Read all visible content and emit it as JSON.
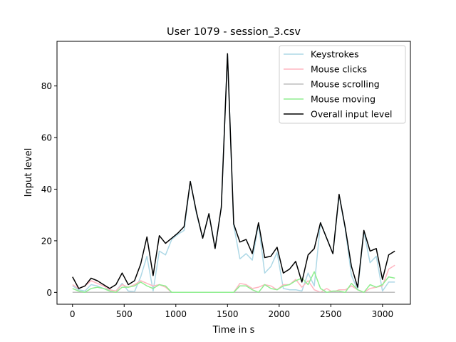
{
  "chart_data": {
    "type": "line",
    "title": "User 1079 - session_3.csv",
    "xlabel": "Time in s",
    "ylabel": "Input level",
    "xlim": [
      -150,
      3270
    ],
    "ylim": [
      -4.6,
      97.3
    ],
    "x_ticks": [
      0,
      500,
      1000,
      1500,
      2000,
      2500,
      3000
    ],
    "y_ticks": [
      0,
      20,
      40,
      60,
      80
    ],
    "x_tick_labels": [
      "0",
      "500",
      "1000",
      "1500",
      "2000",
      "2500",
      "3000"
    ],
    "y_tick_labels": [
      "0",
      "20",
      "40",
      "60",
      "80"
    ],
    "grid": false,
    "legend_position": "top-right",
    "x": [
      0,
      60,
      120,
      180,
      240,
      300,
      360,
      420,
      480,
      540,
      600,
      660,
      720,
      780,
      840,
      900,
      960,
      1020,
      1080,
      1140,
      1200,
      1260,
      1320,
      1380,
      1440,
      1500,
      1560,
      1620,
      1680,
      1740,
      1800,
      1860,
      1920,
      1980,
      2040,
      2100,
      2160,
      2220,
      2280,
      2340,
      2400,
      2460,
      2520,
      2580,
      2640,
      2700,
      2760,
      2820,
      2880,
      2940,
      3000,
      3060,
      3120
    ],
    "series": [
      {
        "name": "Keystrokes",
        "color": "#add8e6",
        "values": [
          2.5,
          1,
          0.5,
          3,
          2.5,
          1.5,
          1,
          0.5,
          3.5,
          0.5,
          0.3,
          6,
          14,
          0.5,
          16,
          14.5,
          20.5,
          22.5,
          24,
          43,
          30.5,
          21,
          30.5,
          17,
          33,
          92.5,
          26,
          13,
          15,
          12.5,
          26.5,
          7.5,
          10,
          15.5,
          1.5,
          1,
          1,
          0.5,
          7.5,
          2.5,
          27,
          21,
          15,
          37.5,
          24.5,
          6.5,
          1,
          23.5,
          11.5,
          14,
          0.5,
          4,
          4
        ]
      },
      {
        "name": "Mouse clicks",
        "color": "#ffb6c1",
        "values": [
          3,
          1.5,
          2.5,
          4.5,
          3.5,
          2.5,
          1,
          0.5,
          3,
          2,
          3,
          4.5,
          3.5,
          2.5,
          3,
          2,
          0,
          0,
          0,
          0,
          0,
          0,
          0,
          0,
          0,
          0,
          0,
          3.5,
          3,
          1.5,
          2,
          3,
          2.5,
          1,
          3,
          3,
          5,
          2,
          4.5,
          1,
          0,
          1.5,
          0,
          1,
          1,
          2.5,
          1,
          0,
          1.5,
          2,
          2.5,
          9,
          10.5
        ]
      },
      {
        "name": "Mouse scrolling",
        "color": "#bebebe",
        "values": [
          0,
          0,
          0,
          0,
          0,
          0,
          0,
          0,
          0,
          0,
          0,
          0,
          0,
          0,
          0,
          0,
          0,
          0,
          0,
          0,
          0,
          0,
          0,
          0,
          0,
          0,
          0,
          0,
          0,
          0,
          0,
          0,
          0,
          0,
          0,
          0,
          0,
          0,
          0,
          0,
          0,
          0,
          0,
          0,
          0,
          0,
          0,
          0,
          0,
          0,
          0,
          0,
          0
        ]
      },
      {
        "name": "Mouse moving",
        "color": "#90ee90",
        "values": [
          1.5,
          0.5,
          0,
          1.5,
          2,
          1.5,
          0.5,
          0,
          2,
          2,
          2.5,
          4,
          2.5,
          1.5,
          3,
          2.5,
          0,
          0,
          0,
          0,
          0,
          0,
          0,
          0,
          0,
          0,
          0,
          2.5,
          2.5,
          1,
          0,
          3,
          1.5,
          1,
          2.5,
          3,
          4.5,
          5.5,
          3,
          8,
          1.5,
          0,
          0.5,
          0.5,
          0,
          3.5,
          1,
          0,
          3,
          2,
          3,
          6,
          5.5
        ]
      },
      {
        "name": "Overall input level",
        "color": "#000000",
        "values": [
          6,
          1.5,
          2.5,
          5.5,
          4.5,
          3,
          1.5,
          3,
          7.5,
          3,
          4.5,
          11,
          21.5,
          6.5,
          22,
          19,
          21,
          23,
          25.5,
          43,
          31,
          21,
          30.5,
          17,
          33,
          92.5,
          26.5,
          19.5,
          20.5,
          15,
          27,
          13.5,
          14,
          17.5,
          7.5,
          9,
          12,
          4,
          14.5,
          17,
          27,
          21,
          15,
          38,
          25,
          10,
          2,
          24,
          16,
          17,
          5,
          14.5,
          16
        ]
      }
    ]
  }
}
